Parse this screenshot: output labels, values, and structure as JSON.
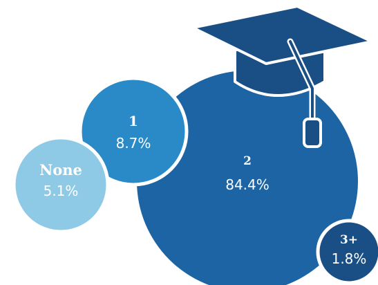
{
  "chart_data": {
    "type": "bubble",
    "title": "",
    "categories": [
      "None",
      "1",
      "2",
      "3+"
    ],
    "values": [
      5.1,
      8.7,
      84.4,
      1.8
    ],
    "value_labels": [
      "5.1%",
      "8.7%",
      "84.4%",
      "1.8%"
    ],
    "unit": "%",
    "colors": [
      "#8ecae6",
      "#2a8ac8",
      "#1d64a5",
      "#1a4f85"
    ],
    "decorations": [
      "graduation-cap-icon"
    ]
  }
}
